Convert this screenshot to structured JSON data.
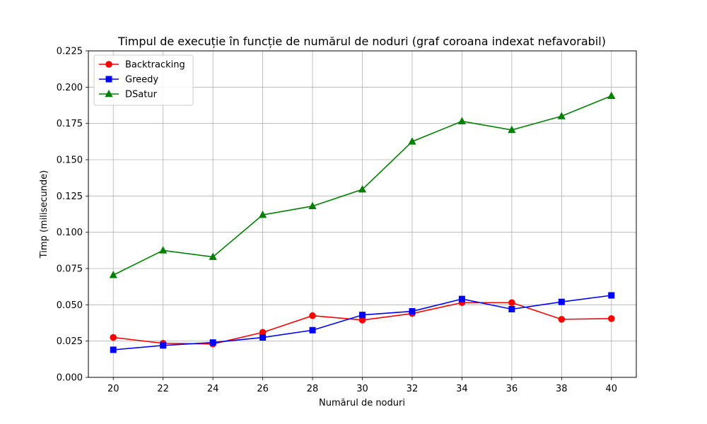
{
  "chart_data": {
    "type": "line",
    "title": "Timpul de execuție în funcție de numărul de noduri (graf coroana indexat nefavorabil)",
    "xlabel": "Numărul de noduri",
    "ylabel": "Timp (milisecunde)",
    "x": [
      20,
      22,
      24,
      26,
      28,
      30,
      32,
      34,
      36,
      38,
      40
    ],
    "xlim": [
      19,
      41
    ],
    "ylim": [
      0,
      0.225
    ],
    "x_ticks": [
      "20",
      "22",
      "24",
      "26",
      "28",
      "30",
      "32",
      "34",
      "36",
      "38",
      "40"
    ],
    "x_tick_values": [
      20,
      22,
      24,
      26,
      28,
      30,
      32,
      34,
      36,
      38,
      40
    ],
    "y_ticks": [
      "0.000",
      "0.025",
      "0.050",
      "0.075",
      "0.100",
      "0.125",
      "0.150",
      "0.175",
      "0.200",
      "0.225"
    ],
    "y_tick_values": [
      0,
      0.025,
      0.05,
      0.075,
      0.1,
      0.125,
      0.15,
      0.175,
      0.2,
      0.225
    ],
    "grid": true,
    "legend_position": "top-left",
    "series": [
      {
        "name": "Backtracking",
        "color": "#ff0000",
        "marker": "circle",
        "values": [
          0.0275,
          0.0235,
          0.023,
          0.031,
          0.0425,
          0.0395,
          0.044,
          0.0515,
          0.0515,
          0.04,
          0.0405
        ]
      },
      {
        "name": "Greedy",
        "color": "#0000ff",
        "marker": "square",
        "values": [
          0.019,
          0.022,
          0.024,
          0.0275,
          0.0325,
          0.043,
          0.0455,
          0.054,
          0.047,
          0.052,
          0.0565
        ]
      },
      {
        "name": "DSatur",
        "color": "#008000",
        "marker": "triangle",
        "values": [
          0.0705,
          0.0875,
          0.083,
          0.112,
          0.118,
          0.1295,
          0.1625,
          0.1765,
          0.1705,
          0.18,
          0.194
        ]
      }
    ]
  }
}
